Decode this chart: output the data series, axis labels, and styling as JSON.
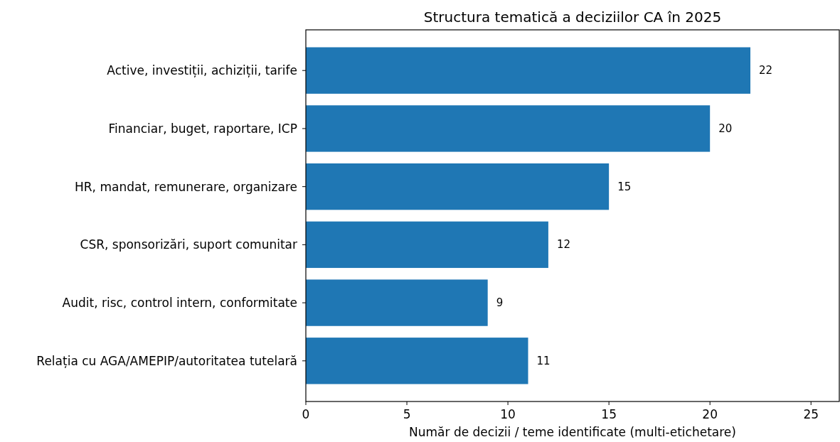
{
  "chart_data": {
    "type": "bar",
    "orientation": "horizontal",
    "title": "Structura tematică a deciziilor CA în 2025",
    "xlabel": "Număr de decizii / teme identificate (multi-etichetare)",
    "categories": [
      "Active, investiții, achiziții, tarife",
      "Financiar, buget, raportare, ICP",
      "HR, mandat, remunerare, organizare",
      "CSR, sponsorizări, suport comunitar",
      "Audit, risc, control intern, conformitate",
      "Relația cu AGA/AMEPIP/autoritatea tutelară"
    ],
    "values": [
      22,
      20,
      15,
      12,
      9,
      11
    ],
    "color": "#1f77b4",
    "data_labels": true,
    "xlim": [
      0,
      26.4
    ],
    "xticks": [
      0,
      5,
      10,
      15,
      20,
      25
    ],
    "grid": false
  }
}
